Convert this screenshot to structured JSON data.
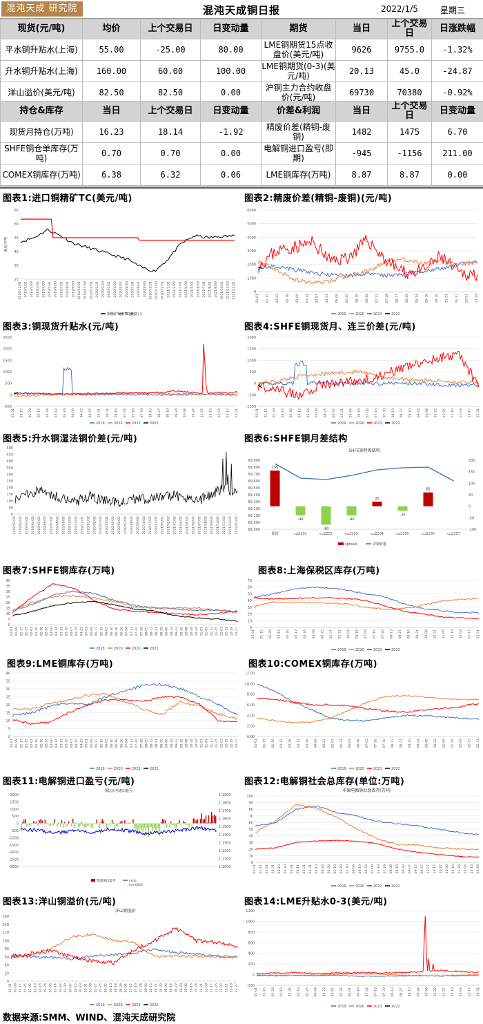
{
  "header": {
    "logo": "混沌天成 研究院",
    "title": "混沌天成铜日报",
    "date": "2022/1/5",
    "weekday": "星期三"
  },
  "table1": {
    "left_headers": [
      "现货(元/吨)",
      "均价",
      "上个交易日",
      "日变动量"
    ],
    "right_headers": [
      "期货",
      "当日",
      "上个交易日",
      "日涨跌幅"
    ],
    "rows": [
      {
        "name": "平水铜升贴水(上海)",
        "avg": "55.00",
        "prev": "-25.00",
        "chg": "80.00",
        "fname": "LME铜期货15点收盘价(美元/吨)",
        "today": "9626",
        "fprev": "9755.0",
        "fchg": "-1.32%"
      },
      {
        "name": "升水铜升贴水(上海)",
        "avg": "160.00",
        "prev": "60.00",
        "chg": "100.00",
        "fname": "LME铜期货(0-3)(美元/吨)",
        "today": "20.13",
        "fprev": "45.0",
        "fchg": "-24.87"
      },
      {
        "name": "洋山溢价(美元/吨)",
        "avg": "82.50",
        "prev": "82.50",
        "chg": "0.00",
        "fname": "沪铜主力合约收盘价(元/吨)",
        "today": "69730",
        "fprev": "70380",
        "fchg": "-0.92%"
      }
    ]
  },
  "table2": {
    "left_headers": [
      "持仓&库存",
      "当日",
      "上个交易日",
      "日变动量"
    ],
    "right_headers": [
      "价差&利润",
      "当日",
      "上个交易日",
      "日变动量"
    ],
    "rows": [
      {
        "name": "现货月持仓(万吨)",
        "today": "16.23",
        "prev": "18.14",
        "chg": "-1.92",
        "rname": "精废价差(精铜-废铜)",
        "rtoday": "1482",
        "rprev": "1475",
        "rchg": "6.70"
      },
      {
        "name": "SHFE铜仓单库存(万吨)",
        "today": "0.70",
        "prev": "0.70",
        "chg": "0.00",
        "rname": "电解铜进口盈亏(即期)",
        "rtoday": "-945",
        "rprev": "-1156",
        "rchg": "211.00"
      },
      {
        "name": "COMEX铜库存(万吨)",
        "today": "6.38",
        "prev": "6.32",
        "chg": "0.06",
        "rname": "LME铜库存(万吨)",
        "rtoday": "8.87",
        "rprev": "8.87",
        "rchg": "0.00"
      }
    ]
  },
  "captions": [
    "图表1:进口铜精矿TC(美元/吨)",
    "图表2:精废价差(精铜-废铜)(元/吨)",
    "图表3:铜现货升贴水(元/吨)",
    "图表4:SHFE铜现货月、连三价差(元/吨)",
    "图表5:升水铜湿法铜价差(元/吨)",
    "图表6:SHFE铜月差结构",
    "图表7:SHFE铜库存(万吨)",
    "图表8:上海保税区库存(万吨)",
    "图表9:LME铜库存(万吨)",
    "图表10:COMEX铜库存(万吨)",
    "图表11:电解铜进口盈亏(元/吨)",
    "图表12:电解铜社会总库存(单位:万吨)",
    "图表13:洋山铜溢价(元/吨)",
    "图表14:LME升贴水0-3(美元/吨)"
  ],
  "footer": "数据来源:SMM、WIND、混沌天成研究院",
  "colors": {
    "c2019": "#4472c4",
    "c2020": "#ed7d31",
    "c2021": "#ff0000",
    "c2022": "#000000",
    "tc": "#000000",
    "tcbench": "#ff0000",
    "bar": "#c00000",
    "barneg": "#92d050",
    "line": "#2e75b6"
  },
  "charts": {
    "c1": {
      "legend": [
        "铜精矿现货TC(美)",
        "TC(长协):1"
      ],
      "ylabel": "美元/干吨",
      "yticks": [
        "85",
        "65",
        "55",
        "45",
        "35",
        "25"
      ],
      "xticks": [
        "2018/12/31",
        "2019/1/31",
        "2019/2/28",
        "2019/3/31",
        "2019/4/30",
        "2019/5/31",
        "2019/6/30",
        "2019/7/31",
        "2019/8/31",
        "2019/9/30",
        "2019/10/31",
        "2019/11/30",
        "2019/12/31",
        "2020/1/31",
        "2020/2/29",
        "2020/3/31",
        "2020/4/30",
        "2020/5/31",
        "2020/6/30",
        "2020/7/31",
        "2020/8/31",
        "2020/9/30",
        "2020/10/31",
        "2020/11/30",
        "2020/12/31",
        "2021/1/31",
        "2021/2/28",
        "2021/3/31",
        "2021/4/30",
        "2021/5/31",
        "2021/6/30",
        "2021/7/31",
        "2021/8/31",
        "2021/9/30",
        "2021/10/31",
        "2021/11/30",
        "2021/12/31"
      ]
    },
    "c2": {
      "yticks": [
        "6000",
        "5000",
        "4000",
        "3000",
        "2000",
        "1000",
        "0"
      ],
      "xticks": [
        "01-01",
        "01-17",
        "02-02",
        "02-18",
        "03-06",
        "03-22",
        "04-07",
        "04-23",
        "05-09",
        "05-25",
        "06-10",
        "06-26",
        "07-12",
        "07-28",
        "08-13",
        "08-29",
        "09-14",
        "09-30",
        "10-16",
        "11-01",
        "11-17",
        "12-03",
        "12-19"
      ],
      "legend": [
        "2019",
        "2020",
        "2021",
        "2022"
      ]
    },
    "c3": {
      "yticks": [
        "2500",
        "2000",
        "1500",
        "1000",
        "500",
        "0",
        "-500"
      ],
      "xticks": [
        "01-01",
        "01-15",
        "01-29",
        "02-12",
        "02-26",
        "03-12",
        "03-26",
        "04-09",
        "04-23",
        "05-07",
        "05-21",
        "06-04",
        "06-18",
        "07-02",
        "07-16",
        "07-30",
        "08-13",
        "08-27",
        "09-10",
        "09-24",
        "10-08",
        "10-22",
        "11-05",
        "11-19",
        "12-03",
        "12-17",
        "12-31"
      ],
      "legend": [
        "2019",
        "2020",
        "2021",
        "2022"
      ]
    },
    "c4": {
      "yticks": [
        "2000",
        "1500",
        "1000",
        "500",
        "0",
        "-500",
        "-1000"
      ],
      "xticks": [
        "01-01",
        "01-15",
        "01-29",
        "02-12",
        "02-26",
        "03-12",
        "03-26",
        "04-09",
        "04-23",
        "05-07",
        "05-21",
        "06-04",
        "06-18",
        "07-02",
        "07-16",
        "07-30",
        "08-13",
        "08-27",
        "09-10",
        "09-24",
        "10-08",
        "10-22",
        "11-05",
        "11-19",
        "12-03",
        "12-17",
        "12-31"
      ],
      "legend": [
        "2019",
        "2020",
        "2021",
        "2022"
      ]
    },
    "c5": {
      "yticks": [
        "500",
        "450",
        "400",
        "350",
        "300",
        "250",
        "200",
        "150",
        "100",
        "50",
        "0"
      ],
      "xticks": [
        "2019/01/02",
        "2019/02/02",
        "2019/03/02",
        "2019/04/02",
        "2019/05/02",
        "2019/06/02",
        "2019/07/02",
        "2019/08/02",
        "2019/09/02",
        "2019/10/02",
        "2019/11/02",
        "2019/12/02",
        "2020/01/02",
        "2020/02/02",
        "2020/03/02",
        "2020/04/02",
        "2020/05/02",
        "2020/06/02",
        "2020/07/02",
        "2020/08/02",
        "2020/09/02",
        "2020/10/02",
        "2020/11/02",
        "2020/12/02",
        "2021/01/02",
        "2021/02/02",
        "2021/03/02",
        "2021/04/02",
        "2021/05/02",
        "2021/06/02",
        "2021/07/02",
        "2021/08/02",
        "2021/09/02",
        "2021/10/02",
        "2021/11/02",
        "2021/12/02",
        "2022/01/02"
      ]
    },
    "c6": {
      "title": "SHFE铜月差结构",
      "yticks": [
        "69,900",
        "69,800",
        "69,700",
        "69,600",
        "69,500",
        "69,400",
        "69,300",
        "69,200",
        "69,100",
        "69,000",
        "68,900"
      ],
      "y2ticks": [
        "200",
        "150",
        "100",
        "50",
        "0",
        "-50",
        "-100"
      ],
      "categories": [
        "现货",
        "cu2201",
        "cu2202",
        "cu2203",
        "cu2204",
        "cu2205",
        "cu2206",
        "cu2207"
      ],
      "spread": [
        155,
        -40,
        -80,
        -40,
        20,
        -20,
        60,
        null
      ],
      "spread_labels": [
        "155",
        "-40",
        "-80",
        "-40",
        "20",
        "-20",
        "60",
        ""
      ],
      "price": [
        69850,
        69640,
        69620,
        69680,
        69760,
        69790,
        69800,
        69600
      ],
      "legend": [
        "spread",
        "沪铜价格"
      ]
    },
    "c7": {
      "yticks": [
        "40",
        "35",
        "30",
        "25",
        "20",
        "15",
        "10",
        "5",
        "0"
      ],
      "xticks": [
        "01-01",
        "01-09",
        "01-17",
        "01-25",
        "02-02",
        "02-10",
        "02-18",
        "02-26",
        "03-06",
        "03-14",
        "03-22",
        "03-30",
        "04-07",
        "04-15",
        "04-23",
        "05-01",
        "05-09",
        "05-17",
        "05-25",
        "06-02",
        "06-10",
        "06-18",
        "06-26",
        "07-04",
        "07-12",
        "07-20",
        "07-28",
        "08-05",
        "08-13",
        "08-21",
        "08-29",
        "09-06",
        "09-14",
        "09-22",
        "09-30",
        "10-08",
        "10-16",
        "10-24",
        "11-01",
        "11-09",
        "11-17",
        "11-25",
        "12-03",
        "12-11",
        "12-19",
        "12-27"
      ],
      "legend": [
        "2018",
        "2019",
        "2020",
        "2021"
      ]
    },
    "c8": {
      "yticks": [
        "70",
        "60",
        "50",
        "40",
        "30",
        "20",
        "10",
        "0"
      ],
      "xticks": [
        "01-01",
        "01-15",
        "01-29",
        "02-12",
        "02-26",
        "03-12",
        "03-26",
        "04-09",
        "04-23",
        "05-07",
        "05-21",
        "06-04",
        "06-18",
        "07-02",
        "07-16",
        "07-30",
        "08-13",
        "08-27",
        "09-10",
        "09-24",
        "10-08",
        "10-22",
        "11-05",
        "11-19",
        "12-03",
        "12-17",
        "12-31"
      ],
      "legend": [
        "2019",
        "2020",
        "2021",
        "2022"
      ]
    },
    "c9": {
      "yticks": [
        "40",
        "35",
        "30",
        "25",
        "20",
        "15",
        "10",
        "5",
        "0"
      ],
      "xticks": [
        "01-01",
        "01-09",
        "01-17",
        "01-25",
        "02-02",
        "02-10",
        "02-18",
        "02-26",
        "03-06",
        "03-14",
        "03-22",
        "03-30",
        "04-07",
        "04-15",
        "04-23",
        "05-01",
        "05-09",
        "05-17",
        "05-25",
        "06-02",
        "06-10",
        "06-18",
        "06-26",
        "07-04",
        "07-12",
        "07-20",
        "07-28",
        "08-05",
        "08-13",
        "08-21",
        "08-29",
        "09-06",
        "09-14",
        "09-22",
        "09-30",
        "10-08",
        "10-16",
        "10-24",
        "11-01",
        "11-09",
        "11-17",
        "11-25",
        "12-03",
        "12-11",
        "12-19",
        "12-27"
      ],
      "legend": [
        "2019",
        "2020",
        "2021",
        "2022"
      ]
    },
    "c10": {
      "yticks": [
        "12.00",
        "10.00",
        "8.00",
        "6.00",
        "4.00",
        "2.00",
        "0.00"
      ],
      "xticks": [
        "01-01",
        "01-15",
        "01-29",
        "02-12",
        "02-26",
        "03-12",
        "03-26",
        "04-09",
        "04-23",
        "05-07",
        "05-21",
        "06-04",
        "06-18",
        "07-02",
        "07-16",
        "07-30",
        "08-13",
        "08-27",
        "09-10",
        "09-24",
        "10-08",
        "10-22",
        "11-05",
        "11-19",
        "12-03",
        "12-17",
        "12-31"
      ],
      "legend": [
        "2019",
        "2020",
        "2021",
        "2022"
      ]
    },
    "c11": {
      "title": "铜比价与进口盈亏",
      "yticks": [
        "2000",
        "1500",
        "1000",
        "500",
        "0",
        "-500",
        "-1000",
        "-1500",
        "-2000",
        "-2500",
        "-3000"
      ],
      "y2ticks": [
        "1.1900",
        "1.1800",
        "1.1700",
        "1.1600",
        "1.1500",
        "1.1400",
        "1.1300",
        "1.1200",
        "1.1100",
        "1.1000"
      ],
      "legend": [
        "现货进口盈亏",
        "ratio",
        "(sn-CNH)"
      ]
    },
    "c12": {
      "title": "中国电解铜社会库存(万吨)",
      "yticks": [
        "100",
        "90",
        "80",
        "70",
        "60",
        "50",
        "40",
        "30",
        "20",
        "10",
        "0"
      ],
      "xticks": [
        "01-01",
        "01-11",
        "01-21",
        "01-31",
        "02-10",
        "02-20",
        "03-01",
        "03-11",
        "03-21",
        "03-31",
        "04-10",
        "04-20",
        "04-30",
        "05-10",
        "05-20",
        "05-30",
        "06-09",
        "06-19",
        "06-29",
        "07-09",
        "07-19",
        "07-29",
        "08-08",
        "08-18",
        "08-28",
        "09-07",
        "09-17",
        "09-27",
        "10-07",
        "10-17",
        "10-27",
        "11-06",
        "11-16",
        "11-26",
        "12-06",
        "12-16",
        "12-26"
      ],
      "legend": [
        "2019",
        "2020",
        "2021",
        "2022"
      ]
    },
    "c13": {
      "title": "洋山铜溢价",
      "yticks": [
        "160",
        "140",
        "120",
        "100",
        "80",
        "60",
        "40",
        "20",
        "0"
      ],
      "xticks": [
        "01-01",
        "01-09",
        "01-17",
        "01-25",
        "02-02",
        "02-10",
        "02-18",
        "02-26",
        "03-06",
        "03-14",
        "03-22",
        "03-30",
        "04-07",
        "04-15",
        "04-23",
        "05-01",
        "05-09",
        "05-17",
        "05-25",
        "06-02",
        "06-10",
        "06-18",
        "06-26",
        "07-04",
        "07-12",
        "07-20",
        "07-28",
        "08-05",
        "08-13",
        "08-21",
        "08-29",
        "09-06",
        "09-14",
        "09-22",
        "09-30",
        "10-08",
        "10-16",
        "10-24",
        "11-01",
        "11-09",
        "11-17",
        "11-25",
        "12-03",
        "12-11",
        "12-19",
        "12-27"
      ],
      "legend": [
        "2019",
        "2020",
        "2021",
        "2022"
      ]
    },
    "c14": {
      "yticks": [
        "1200",
        "1000",
        "800",
        "600",
        "400",
        "200",
        "0",
        "-200"
      ],
      "xticks": [
        "01-01",
        "01-15",
        "01-29",
        "02-12",
        "02-26",
        "03-12",
        "03-26",
        "04-09",
        "04-23",
        "05-07",
        "05-21",
        "06-04",
        "06-18",
        "07-02",
        "07-16",
        "07-30",
        "08-13",
        "08-27",
        "09-10",
        "09-24",
        "10-08",
        "10-22",
        "11-05",
        "11-19",
        "12-03",
        "12-17",
        "12-31"
      ],
      "legend": [
        "2019",
        "2020",
        "2021",
        "2022"
      ]
    }
  }
}
